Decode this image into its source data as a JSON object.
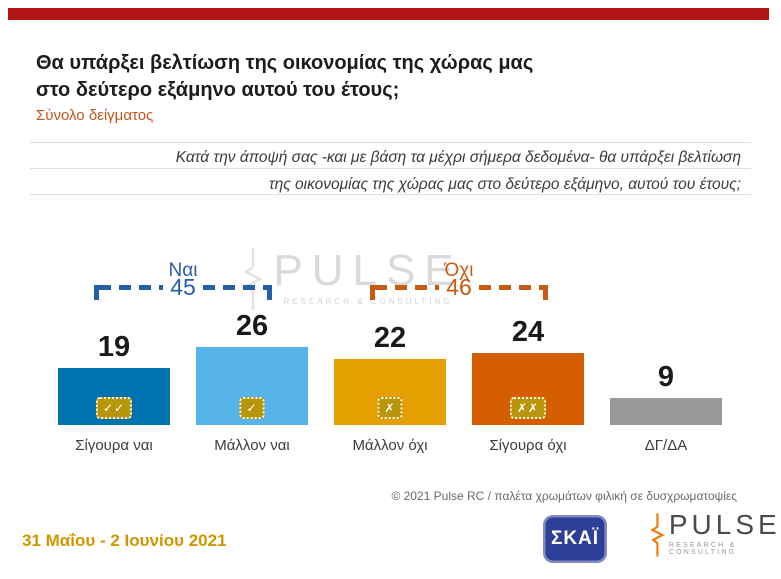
{
  "header": {
    "title_line1": "Θα υπάρξει βελτίωση της οικονομίας της χώρας μας",
    "title_line2": "στο δεύτερο εξάμηνο αυτού του έτους;",
    "subtitle": "Σύνολο δείγματος"
  },
  "question": {
    "line1": "Κατά την άποψή σας -και με βάση τα μέχρι σήμερα δεδομένα- θα υπάρξει βελτίωση",
    "line2": "της οικονομίας της χώρας μας στο δεύτερο εξάμηνο, αυτού του έτους;"
  },
  "chart_data": {
    "type": "bar",
    "title": "Θα υπάρξει βελτίωση της οικονομίας της χώρας μας στο δεύτερο εξάμηνο αυτού του έτους;",
    "categories": [
      "Σίγουρα ναι",
      "Μάλλον ναι",
      "Μάλλον όχι",
      "Σίγουρα όχι",
      "ΔΓ/ΔΑ"
    ],
    "values": [
      19,
      26,
      22,
      24,
      9
    ],
    "colors": [
      "#0072B2",
      "#56B4E9",
      "#E69F00",
      "#D55E00",
      "#999999"
    ],
    "icons": [
      "✓✓",
      "✓",
      "✗",
      "✗✗",
      ""
    ],
    "icon_names": [
      "double-check-icon",
      "check-icon",
      "x-icon",
      "double-x-icon",
      ""
    ],
    "groups": [
      {
        "label": "Ναι",
        "value": 45,
        "color": "#2660A4",
        "spans": [
          0,
          1
        ]
      },
      {
        "label": "Όχι",
        "value": 46,
        "color": "#C55A11",
        "spans": [
          2,
          3
        ]
      }
    ],
    "ylim": [
      0,
      30
    ],
    "grid": false,
    "legend": "none",
    "data_labels": true
  },
  "watermark": {
    "text": "PULSE",
    "subtext": "RESEARCH & CONSULTING"
  },
  "footer": {
    "copyright": "© 2021 Pulse RC   /   παλέτα χρωμάτων φιλική σε δυσχρωματοψίες",
    "date_range": "31 Μαΐου - 2 Ιουνίου 2021"
  },
  "logos": {
    "skai_label": "ΣΚΑΪ",
    "pulse_label": "PULSE",
    "pulse_subtext": "RESEARCH & CONSULTING"
  },
  "colors": {
    "top_strip": "#B01513",
    "subtitle_orange": "#C4561C",
    "yes_blue": "#2660A4",
    "no_orange": "#C55A11",
    "icon_gold": "#B8960B",
    "skai_blue": "#2E3F97",
    "pulse_orange": "#F07D00",
    "date_gold": "#D29500"
  }
}
